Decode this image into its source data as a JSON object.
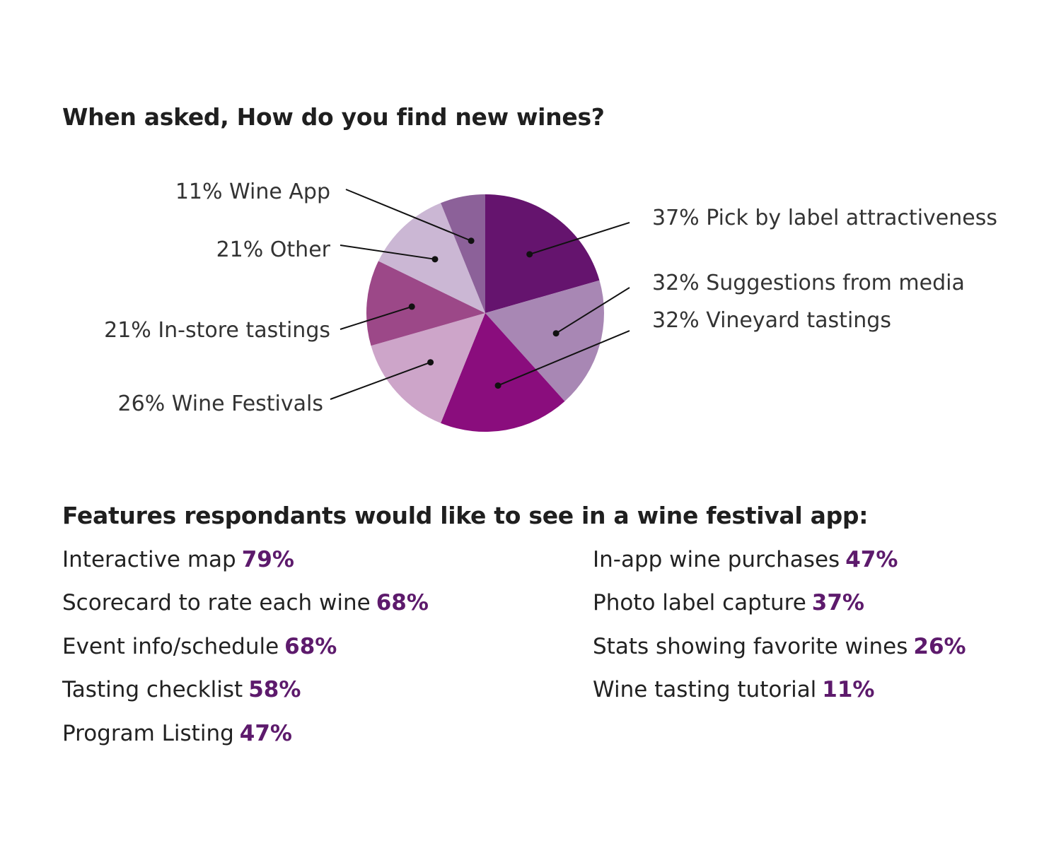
{
  "chart_data": {
    "type": "pie",
    "title": "When asked, How do you find new wines?",
    "slices": [
      {
        "label": "37% Pick by label attractiveness",
        "value": 37,
        "color": "#65146e"
      },
      {
        "label": "32% Suggestions from media",
        "value": 32,
        "color": "#a887b4"
      },
      {
        "label": "32% Vineyard tastings",
        "value": 32,
        "color": "#8a0d7d"
      },
      {
        "label": "26% Wine Festivals",
        "value": 26,
        "color": "#cda5c9"
      },
      {
        "label": "21% In-store tastings",
        "value": 21,
        "color": "#9c4888"
      },
      {
        "label": "21% Other",
        "value": 21,
        "color": "#cbb7d4"
      },
      {
        "label": "11% Wine App",
        "value": 11,
        "color": "#8c6199"
      }
    ]
  },
  "features": {
    "title": "Features respondants would like to see in a wine festival app:",
    "left": [
      {
        "name": "Interactive map",
        "pct": "79%"
      },
      {
        "name": "Scorecard to rate each wine",
        "pct": "68%"
      },
      {
        "name": "Event info/schedule",
        "pct": "68%"
      },
      {
        "name": "Tasting checklist",
        "pct": "58%"
      },
      {
        "name": "Program Listing",
        "pct": "47%"
      }
    ],
    "right": [
      {
        "name": "In-app wine purchases",
        "pct": "47%"
      },
      {
        "name": "Photo label capture",
        "pct": "37%"
      },
      {
        "name": "Stats showing favorite wines",
        "pct": "26%"
      },
      {
        "name": "Wine tasting tutorial",
        "pct": "11%"
      }
    ]
  }
}
